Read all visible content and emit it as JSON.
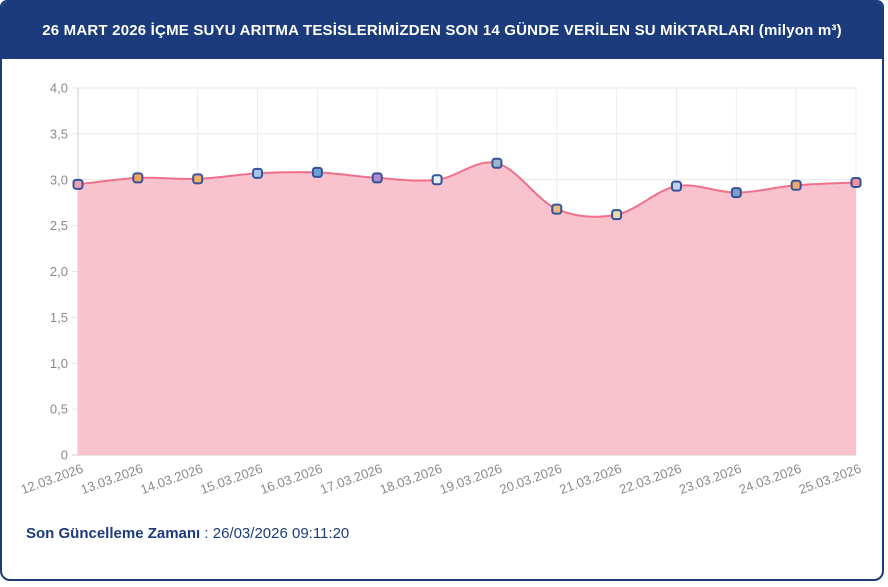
{
  "header": {
    "title": "26 MART 2026 İÇME SUYU ARITMA TESİSLERİMİZDEN SON 14 GÜNDE VERİLEN SU MİKTARLARI (milyon m³)"
  },
  "footer": {
    "label": "Son Güncelleme Zamanı",
    "separator": " : ",
    "value": "26/03/2026 09:11:20"
  },
  "colors": {
    "header_bg": "#1c3b7c",
    "card_border": "#1c3b7c",
    "footer_text": "#1c3b7c"
  },
  "chart_data": {
    "type": "area",
    "title": "",
    "xlabel": "",
    "ylabel": "",
    "categories": [
      "12.03.2026",
      "13.03.2026",
      "14.03.2026",
      "15.03.2026",
      "16.03.2026",
      "17.03.2026",
      "18.03.2026",
      "19.03.2026",
      "20.03.2026",
      "21.03.2026",
      "22.03.2026",
      "23.03.2026",
      "24.03.2026",
      "25.03.2026"
    ],
    "values": [
      2.95,
      3.02,
      3.01,
      3.07,
      3.08,
      3.02,
      3.0,
      3.18,
      2.68,
      2.62,
      2.93,
      2.86,
      2.94,
      2.97
    ],
    "ylim": [
      0,
      4
    ],
    "ytick_step": 0.5,
    "ytick_labels": [
      "4,0",
      "3,5",
      "3,0",
      "2,5",
      "2,0",
      "1,5",
      "1,0",
      "0,5",
      "0"
    ],
    "grid": true,
    "legend": "none",
    "line_color": "#f0708c",
    "fill_color": "#f9c3ce",
    "marker_border": "#35539a",
    "point_colors": [
      "#f2a0ae",
      "#f5a45c",
      "#f2b266",
      "#a6c6e6",
      "#6e9ed6",
      "#b08cd2",
      "#e9eff5",
      "#9cb6ce",
      "#e9ba80",
      "#ecd9a6",
      "#bed2e6",
      "#7e9cc8",
      "#f2a868",
      "#f2929e"
    ],
    "grid_color": "#e6e6e6",
    "vgrid_color": "#ececec",
    "axis_color": "#cfcfcf",
    "axis_label_color": "#8a8a8a"
  }
}
